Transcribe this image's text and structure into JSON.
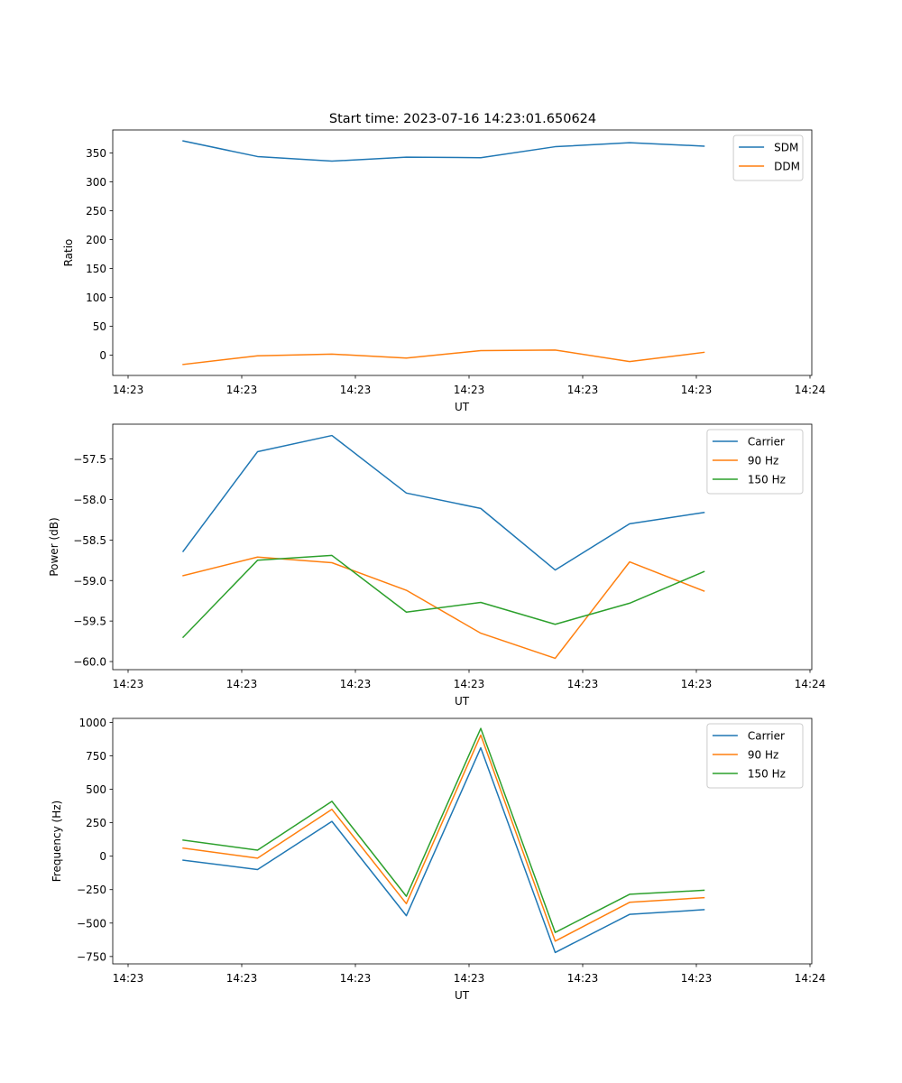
{
  "title": "Start time: 2023-07-16 14:23:01.650624",
  "colors": {
    "series1": "#1f77b4",
    "series2": "#ff7f0e",
    "series3": "#2ca02c"
  },
  "chart_data": [
    {
      "type": "line",
      "ylabel": "Ratio",
      "xlabel": "UT",
      "x_tick_labels": [
        "14:23",
        "14:23",
        "14:23",
        "14:23",
        "14:23",
        "14:23",
        "14:24"
      ],
      "y_ticks": [
        0,
        50,
        100,
        150,
        200,
        250,
        300,
        350
      ],
      "y_tick_labels": [
        "0",
        "50",
        "100",
        "150",
        "200",
        "250",
        "300",
        "350"
      ],
      "ylim": [
        -35,
        390
      ],
      "legend_position": "top-right",
      "series": [
        {
          "name": "SDM",
          "color": "#1f77b4",
          "values": [
            371,
            344,
            336,
            343,
            342,
            361,
            368,
            362
          ]
        },
        {
          "name": "DDM",
          "color": "#ff7f0e",
          "values": [
            -16,
            -1,
            2,
            -5,
            8,
            9,
            -11,
            5
          ]
        }
      ]
    },
    {
      "type": "line",
      "ylabel": "Power (dB)",
      "xlabel": "UT",
      "x_tick_labels": [
        "14:23",
        "14:23",
        "14:23",
        "14:23",
        "14:23",
        "14:23",
        "14:24"
      ],
      "y_ticks": [
        -60.0,
        -59.5,
        -59.0,
        -58.5,
        -58.0,
        -57.5
      ],
      "y_tick_labels": [
        "−60.0",
        "−59.5",
        "−59.0",
        "−58.5",
        "−58.0",
        "−57.5"
      ],
      "ylim": [
        -60.1,
        -57.07
      ],
      "legend_position": "top-right",
      "series": [
        {
          "name": "Carrier",
          "color": "#1f77b4",
          "values": [
            -58.64,
            -57.41,
            -57.21,
            -57.92,
            -58.11,
            -58.87,
            -58.3,
            -58.16
          ]
        },
        {
          "name": "90 Hz",
          "color": "#ff7f0e",
          "values": [
            -58.94,
            -58.71,
            -58.78,
            -59.12,
            -59.65,
            -59.96,
            -58.77,
            -59.13
          ]
        },
        {
          "name": "150 Hz",
          "color": "#2ca02c",
          "values": [
            -59.7,
            -58.75,
            -58.69,
            -59.39,
            -59.27,
            -59.54,
            -59.28,
            -58.89
          ]
        }
      ]
    },
    {
      "type": "line",
      "ylabel": "Frequency (Hz)",
      "xlabel": "UT",
      "x_tick_labels": [
        "14:23",
        "14:23",
        "14:23",
        "14:23",
        "14:23",
        "14:23",
        "14:24"
      ],
      "y_ticks": [
        -750,
        -500,
        -250,
        0,
        250,
        500,
        750,
        1000
      ],
      "y_tick_labels": [
        "−750",
        "−500",
        "−250",
        "0",
        "250",
        "500",
        "750",
        "1000"
      ],
      "ylim": [
        -805,
        1030
      ],
      "legend_position": "top-right",
      "series": [
        {
          "name": "Carrier",
          "color": "#1f77b4",
          "values": [
            -30,
            -100,
            260,
            -445,
            810,
            -720,
            -435,
            -400
          ]
        },
        {
          "name": "90 Hz",
          "color": "#ff7f0e",
          "values": [
            60,
            -15,
            350,
            -355,
            905,
            -635,
            -345,
            -310
          ]
        },
        {
          "name": "150 Hz",
          "color": "#2ca02c",
          "values": [
            120,
            45,
            410,
            -300,
            955,
            -570,
            -285,
            -255
          ]
        }
      ]
    }
  ]
}
